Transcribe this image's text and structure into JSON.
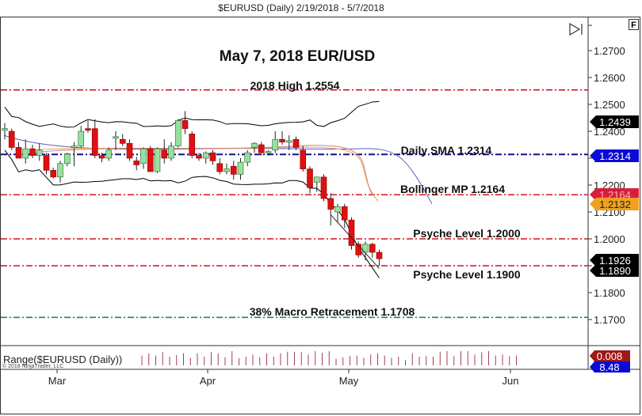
{
  "header": {
    "title": "$EURUSD (Daily)  2/19/2018 - 5/7/2018"
  },
  "controls": {
    "f_button": "F",
    "scroll_end_icon": "skip-to-end-icon"
  },
  "annotations": {
    "main_title": "May 7, 2018 EUR/USD",
    "high_2018": "2018 High 1.2554",
    "daily_sma": "Daily SMA 1.2314",
    "bollinger_mp": "Bollinger MP 1.2164",
    "psyche_2000": "Psyche Level 1.2000",
    "psyche_1900": "Psyche Level 1.1900",
    "macro_retracement": "38% Macro Retracement 1.1708"
  },
  "indicator_panel": {
    "label": "Range($EURUSD (Daily))",
    "copyright": "© 2018 NinjaTrader, LLC"
  },
  "price_badges": [
    {
      "value": "1.2439",
      "bg": "#000000",
      "fg": "#ffffff",
      "price": 1.2439
    },
    {
      "value": "1.2314",
      "bg": "#0a0ad8",
      "fg": "#ffffff",
      "price": 1.2314
    },
    {
      "value": "1.2164",
      "bg": "#d81e3a",
      "fg": "#ffb0b0",
      "price": 1.2164
    },
    {
      "value": "1.2132",
      "bg": "#f0a020",
      "fg": "#222222",
      "price": 1.2132
    },
    {
      "value": "1.1926",
      "bg": "#000000",
      "fg": "#ffffff",
      "price": 1.1926
    },
    {
      "value": "1.1890",
      "bg": "#000000",
      "fg": "#ffffff",
      "price": 1.189
    }
  ],
  "indicator_badges": [
    {
      "value": "0.008",
      "bg": "#a01818",
      "fg": "#ffffff"
    },
    {
      "value": "8.48",
      "bg": "#0a0ad8",
      "fg": "#ffffff"
    }
  ],
  "colors": {
    "up": "#98e0a0",
    "down": "#e01010",
    "level_red": "#d01020",
    "sma_blue": "#101080",
    "teal": "#208070",
    "bb": "#000000",
    "ma_blue": "#6060c0",
    "ma_orange": "#f0a050",
    "ma_pink": "#d08080"
  },
  "chart_data": {
    "type": "candlestick",
    "title": "May 7, 2018 EUR/USD",
    "subtitle": "$EURUSD (Daily) 2/19/2018 - 5/7/2018",
    "y_ticks": [
      1.27,
      1.26,
      1.25,
      1.24,
      1.23,
      1.22,
      1.21,
      1.2,
      1.19,
      1.18,
      1.17
    ],
    "x_ticks": [
      "Mar",
      "Apr",
      "May",
      "Jun"
    ],
    "ylim": [
      1.165,
      1.275
    ],
    "levels": [
      {
        "name": "2018 High",
        "value": 1.2554,
        "style": "dash-dot",
        "color": "red"
      },
      {
        "name": "Daily SMA",
        "value": 1.2314,
        "style": "dash-dot",
        "color": "navy"
      },
      {
        "name": "Bollinger MP",
        "value": 1.2164,
        "style": "dash-dot",
        "color": "red"
      },
      {
        "name": "Psyche Level",
        "value": 1.2,
        "style": "dash-dot",
        "color": "red"
      },
      {
        "name": "Psyche Level",
        "value": 1.19,
        "style": "dash-dot",
        "color": "red"
      },
      {
        "name": "38% Macro Retracement",
        "value": 1.1708,
        "style": "dash-dot",
        "color": "teal"
      }
    ],
    "last_values": {
      "close": 1.1926,
      "bb_upper": 1.2439,
      "sma": 1.2314,
      "bb_mid": 1.2164,
      "ma_orange": 1.2132,
      "low": 1.189,
      "range": 0.008,
      "range_avg": 8.48
    },
    "candles": [
      {
        "o": 1.2408,
        "h": 1.243,
        "l": 1.237,
        "c": 1.241
      },
      {
        "o": 1.24,
        "h": 1.241,
        "l": 1.233,
        "c": 1.234
      },
      {
        "o": 1.234,
        "h": 1.236,
        "l": 1.23,
        "c": 1.23
      },
      {
        "o": 1.23,
        "h": 1.237,
        "l": 1.228,
        "c": 1.2335
      },
      {
        "o": 1.2335,
        "h": 1.235,
        "l": 1.23,
        "c": 1.231
      },
      {
        "o": 1.231,
        "h": 1.2355,
        "l": 1.229,
        "c": 1.233
      },
      {
        "o": 1.231,
        "h": 1.232,
        "l": 1.224,
        "c": 1.2255
      },
      {
        "o": 1.2255,
        "h": 1.2265,
        "l": 1.2225,
        "c": 1.223
      },
      {
        "o": 1.223,
        "h": 1.229,
        "l": 1.221,
        "c": 1.228
      },
      {
        "o": 1.228,
        "h": 1.232,
        "l": 1.227,
        "c": 1.2315
      },
      {
        "o": 1.2345,
        "h": 1.236,
        "l": 1.227,
        "c": 1.2345
      },
      {
        "o": 1.2345,
        "h": 1.242,
        "l": 1.234,
        "c": 1.24
      },
      {
        "o": 1.241,
        "h": 1.244,
        "l": 1.2395,
        "c": 1.2405
      },
      {
        "o": 1.241,
        "h": 1.2445,
        "l": 1.23,
        "c": 1.231
      },
      {
        "o": 1.231,
        "h": 1.232,
        "l": 1.2285,
        "c": 1.23
      },
      {
        "o": 1.23,
        "h": 1.234,
        "l": 1.229,
        "c": 1.233
      },
      {
        "o": 1.238,
        "h": 1.24,
        "l": 1.233,
        "c": 1.238
      },
      {
        "o": 1.237,
        "h": 1.239,
        "l": 1.2345,
        "c": 1.2355
      },
      {
        "o": 1.2355,
        "h": 1.237,
        "l": 1.229,
        "c": 1.23
      },
      {
        "o": 1.229,
        "h": 1.2305,
        "l": 1.2255,
        "c": 1.2275
      },
      {
        "o": 1.228,
        "h": 1.234,
        "l": 1.226,
        "c": 1.2335
      },
      {
        "o": 1.2335,
        "h": 1.2345,
        "l": 1.225,
        "c": 1.225
      },
      {
        "o": 1.225,
        "h": 1.234,
        "l": 1.2245,
        "c": 1.2335
      },
      {
        "o": 1.233,
        "h": 1.237,
        "l": 1.228,
        "c": 1.23
      },
      {
        "o": 1.23,
        "h": 1.236,
        "l": 1.229,
        "c": 1.2345
      },
      {
        "o": 1.2345,
        "h": 1.2445,
        "l": 1.234,
        "c": 1.244
      },
      {
        "o": 1.244,
        "h": 1.2475,
        "l": 1.239,
        "c": 1.241
      },
      {
        "o": 1.239,
        "h": 1.24,
        "l": 1.23,
        "c": 1.231
      },
      {
        "o": 1.231,
        "h": 1.232,
        "l": 1.229,
        "c": 1.23
      },
      {
        "o": 1.23,
        "h": 1.2325,
        "l": 1.228,
        "c": 1.232
      },
      {
        "o": 1.232,
        "h": 1.233,
        "l": 1.2275,
        "c": 1.229
      },
      {
        "o": 1.228,
        "h": 1.23,
        "l": 1.224,
        "c": 1.225
      },
      {
        "o": 1.225,
        "h": 1.228,
        "l": 1.224,
        "c": 1.226
      },
      {
        "o": 1.227,
        "h": 1.229,
        "l": 1.222,
        "c": 1.224
      },
      {
        "o": 1.224,
        "h": 1.23,
        "l": 1.222,
        "c": 1.2285
      },
      {
        "o": 1.2285,
        "h": 1.233,
        "l": 1.227,
        "c": 1.232
      },
      {
        "o": 1.234,
        "h": 1.236,
        "l": 1.232,
        "c": 1.2355
      },
      {
        "o": 1.235,
        "h": 1.236,
        "l": 1.231,
        "c": 1.232
      },
      {
        "o": 1.232,
        "h": 1.233,
        "l": 1.231,
        "c": 1.2325
      },
      {
        "o": 1.233,
        "h": 1.24,
        "l": 1.232,
        "c": 1.237
      },
      {
        "o": 1.237,
        "h": 1.24,
        "l": 1.235,
        "c": 1.236
      },
      {
        "o": 1.2365,
        "h": 1.2385,
        "l": 1.233,
        "c": 1.2365
      },
      {
        "o": 1.237,
        "h": 1.238,
        "l": 1.233,
        "c": 1.234
      },
      {
        "o": 1.233,
        "h": 1.2345,
        "l": 1.225,
        "c": 1.226
      },
      {
        "o": 1.226,
        "h": 1.227,
        "l": 1.217,
        "c": 1.219
      },
      {
        "o": 1.221,
        "h": 1.223,
        "l": 1.2175,
        "c": 1.223
      },
      {
        "o": 1.223,
        "h": 1.224,
        "l": 1.214,
        "c": 1.215
      },
      {
        "o": 1.215,
        "h": 1.217,
        "l": 1.205,
        "c": 1.211
      },
      {
        "o": 1.21,
        "h": 1.213,
        "l": 1.206,
        "c": 1.212
      },
      {
        "o": 1.212,
        "h": 1.213,
        "l": 1.204,
        "c": 1.207
      },
      {
        "o": 1.207,
        "h": 1.208,
        "l": 1.196,
        "c": 1.1975
      },
      {
        "o": 1.198,
        "h": 1.199,
        "l": 1.193,
        "c": 1.194
      },
      {
        "o": 1.195,
        "h": 1.199,
        "l": 1.192,
        "c": 1.198
      },
      {
        "o": 1.198,
        "h": 1.1985,
        "l": 1.193,
        "c": 1.195
      },
      {
        "o": 1.195,
        "h": 1.196,
        "l": 1.19,
        "c": 1.1926
      }
    ]
  }
}
